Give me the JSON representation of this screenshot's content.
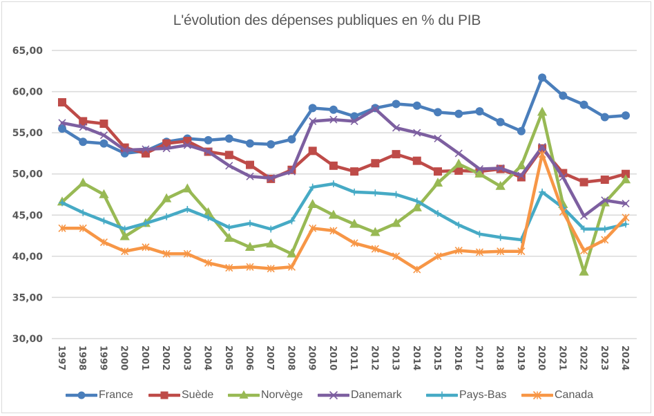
{
  "chart_data": {
    "type": "line",
    "title": "L'évolution des dépenses publiques  en % du PIB",
    "xlabel": "",
    "ylabel": "",
    "ylim": [
      30,
      65
    ],
    "yticks": [
      "30,00",
      "35,00",
      "40,00",
      "45,00",
      "50,00",
      "55,00",
      "60,00",
      "65,00"
    ],
    "ytick_values": [
      30,
      35,
      40,
      45,
      50,
      55,
      60,
      65
    ],
    "grid": true,
    "legend_position": "bottom",
    "x": [
      "1997",
      "1998",
      "1999",
      "2000",
      "2001",
      "2002",
      "2003",
      "2004",
      "2005",
      "2006",
      "2007",
      "2008",
      "2009",
      "2010",
      "2011",
      "2012",
      "2013",
      "2014",
      "2015",
      "2016",
      "2017",
      "2018",
      "2019",
      "2020",
      "2021",
      "2022",
      "2023",
      "2024"
    ],
    "series": [
      {
        "name": "France",
        "color": "#4a7ebb",
        "marker": "circle",
        "values": [
          55.5,
          53.9,
          53.7,
          52.5,
          52.8,
          53.9,
          54.3,
          54.1,
          54.3,
          53.7,
          53.6,
          54.2,
          58.0,
          57.8,
          57.0,
          58.0,
          58.5,
          58.3,
          57.5,
          57.3,
          57.6,
          56.3,
          55.2,
          61.7,
          59.5,
          58.4,
          56.9,
          57.1
        ]
      },
      {
        "name": "Suède",
        "color": "#be4b48",
        "marker": "square",
        "values": [
          58.7,
          56.4,
          56.1,
          53.2,
          52.5,
          53.7,
          54.0,
          52.7,
          52.3,
          51.1,
          49.4,
          50.5,
          52.8,
          51.0,
          50.3,
          51.3,
          52.4,
          51.6,
          50.3,
          50.4,
          50.3,
          50.6,
          49.6,
          53.1,
          50.1,
          49.0,
          49.3,
          50.0
        ]
      },
      {
        "name": "Norvège",
        "color": "#98b954",
        "marker": "triangle",
        "values": [
          46.6,
          48.9,
          47.5,
          42.4,
          44.0,
          47.0,
          48.2,
          45.3,
          42.2,
          41.1,
          41.5,
          40.3,
          46.3,
          45.0,
          43.9,
          42.9,
          44.0,
          45.9,
          48.9,
          51.2,
          50.0,
          48.5,
          51.0,
          57.5,
          46.3,
          38.1,
          46.5,
          49.3
        ]
      },
      {
        "name": "Danemark",
        "color": "#7d5fa0",
        "marker": "x",
        "values": [
          56.2,
          55.7,
          54.7,
          52.9,
          53.0,
          53.1,
          53.5,
          52.7,
          51.0,
          49.7,
          49.5,
          50.3,
          56.4,
          56.6,
          56.4,
          57.9,
          55.6,
          55.0,
          54.3,
          52.5,
          50.6,
          50.7,
          49.8,
          53.3,
          49.6,
          44.9,
          46.8,
          46.4
        ]
      },
      {
        "name": "Pays-Bas",
        "color": "#46aac5",
        "marker": "plus",
        "values": [
          46.5,
          45.3,
          44.3,
          43.3,
          44.0,
          44.8,
          45.7,
          44.7,
          43.5,
          44.0,
          43.3,
          44.3,
          48.4,
          48.8,
          47.8,
          47.7,
          47.5,
          46.7,
          45.2,
          43.8,
          42.7,
          42.3,
          42.0,
          47.8,
          45.9,
          43.3,
          43.3,
          43.9
        ]
      },
      {
        "name": "Canada",
        "color": "#f79646",
        "marker": "star",
        "values": [
          43.4,
          43.4,
          41.7,
          40.6,
          41.1,
          40.3,
          40.3,
          39.2,
          38.6,
          38.7,
          38.5,
          38.7,
          43.4,
          43.1,
          41.6,
          40.9,
          40.0,
          38.4,
          40.0,
          40.7,
          40.5,
          40.6,
          40.6,
          52.4,
          45.4,
          40.7,
          42.0,
          44.7
        ]
      }
    ]
  }
}
